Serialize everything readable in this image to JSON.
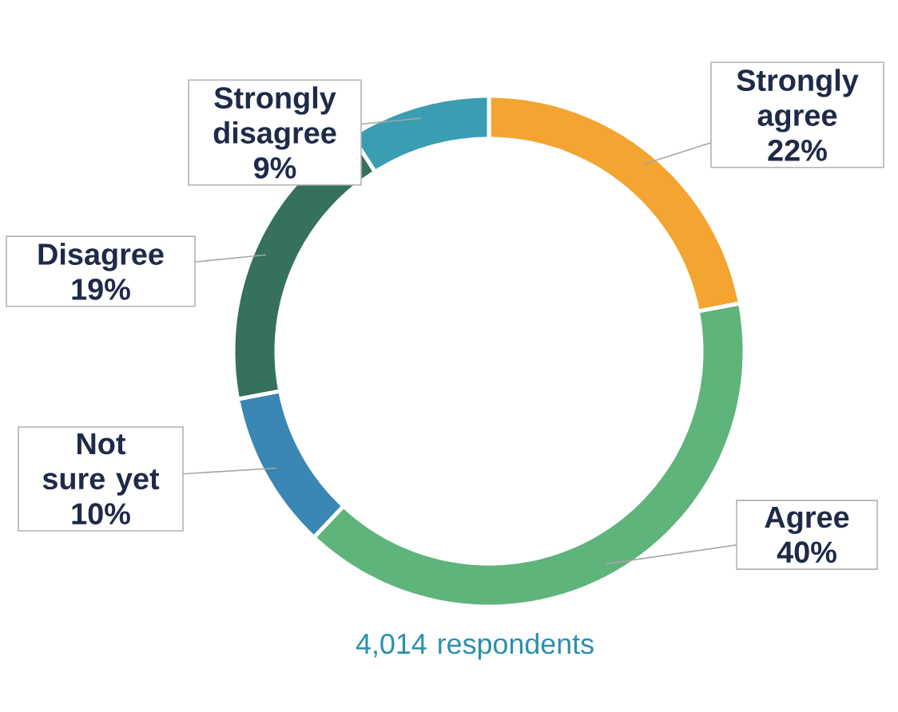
{
  "chart_data": {
    "type": "donut",
    "categories": [
      "Strongly agree",
      "Agree",
      "Not sure yet",
      "Disagree",
      "Strongly disagree"
    ],
    "values": [
      22,
      40,
      10,
      19,
      9
    ],
    "colors": [
      "#f3a431",
      "#5eb47a",
      "#3a86b5",
      "#36705f",
      "#3a9db1"
    ],
    "value_labels": [
      "22%",
      "40%",
      "10%",
      "19%",
      "9%"
    ],
    "annotations": [
      "4,014 respondents"
    ]
  }
}
